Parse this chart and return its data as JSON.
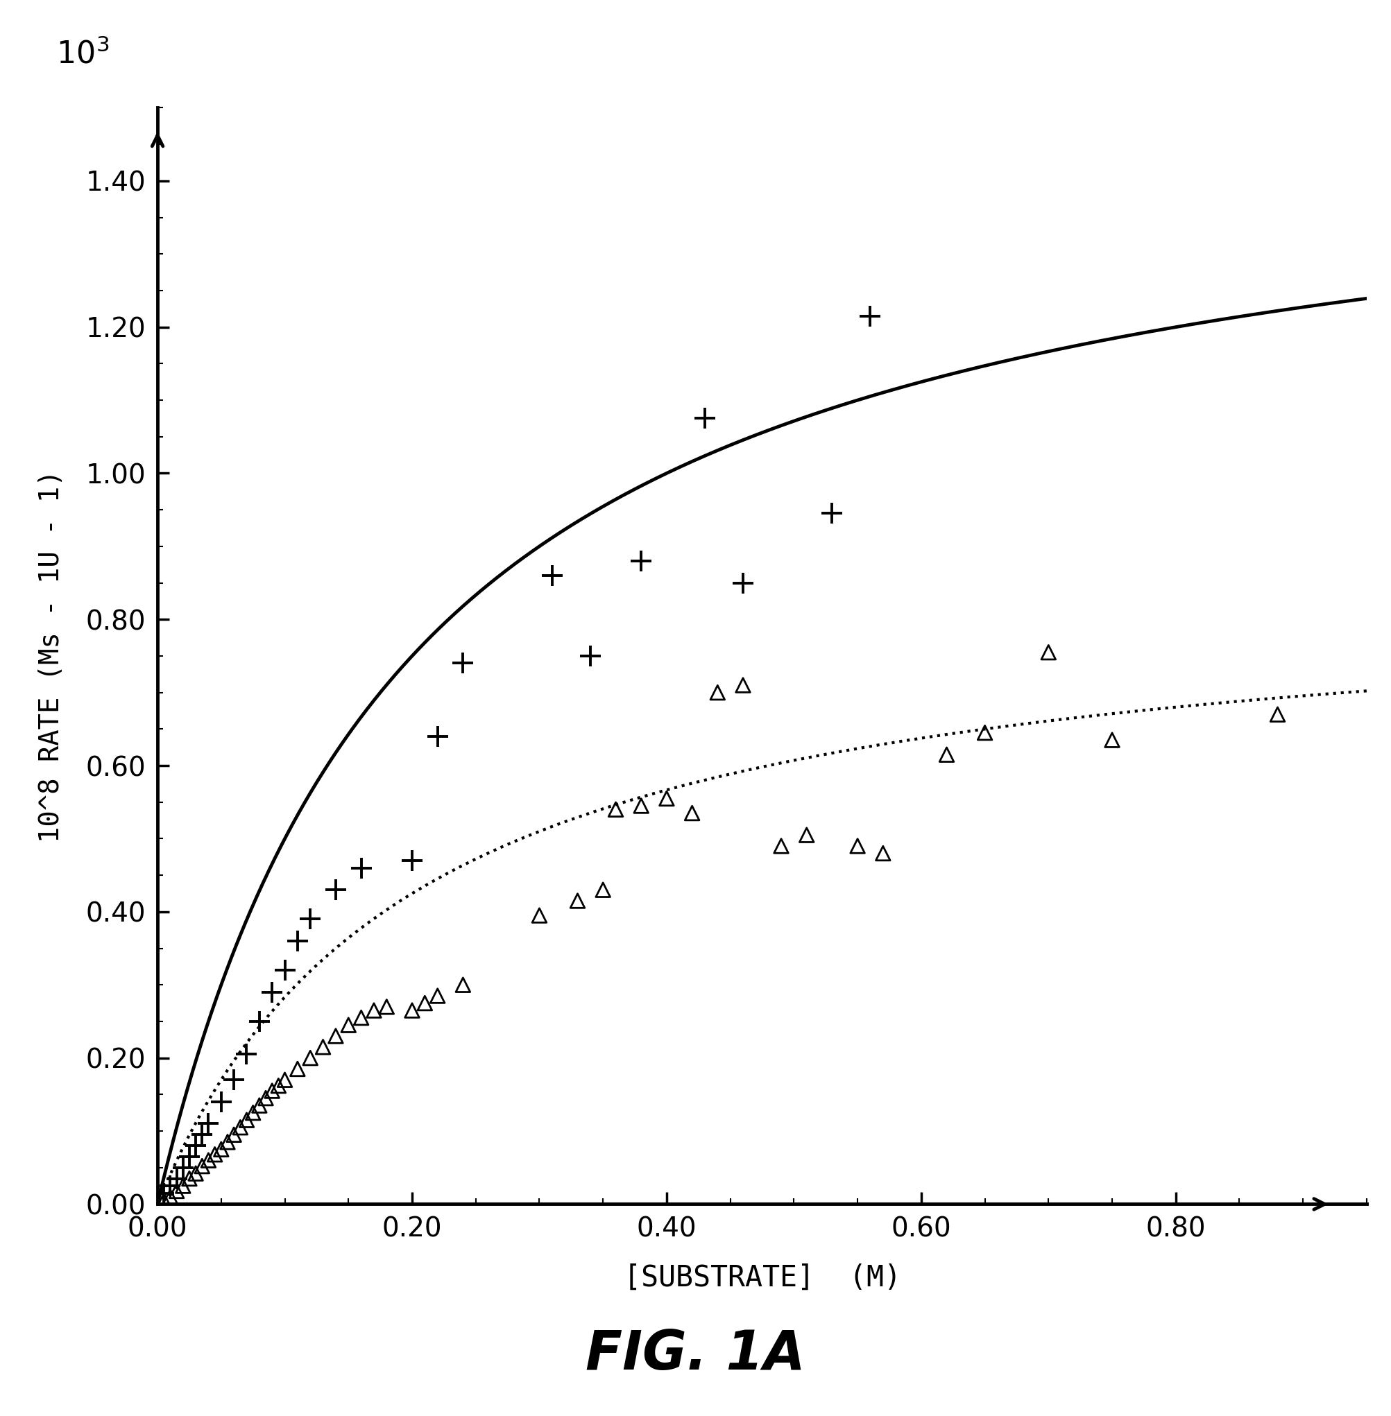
{
  "title": "FIG. 1A",
  "xlabel": "[SUBSTRATE]  (M)",
  "ylabel": "10^8 RATE (Ms - 1U - 1)",
  "xlim": [
    0.0,
    0.95
  ],
  "ylim": [
    0.0,
    1.5
  ],
  "xticks": [
    0.0,
    0.2,
    0.4,
    0.6,
    0.8
  ],
  "yticks": [
    0.0,
    0.2,
    0.4,
    0.6,
    0.8,
    1.0,
    1.2,
    1.4
  ],
  "background_color": "#ffffff",
  "line_color_solid": "#000000",
  "line_color_dotted": "#000000",
  "plus_marker_color": "#000000",
  "triangle_marker_color": "#000000",
  "plus_x": [
    0.005,
    0.01,
    0.015,
    0.02,
    0.025,
    0.03,
    0.035,
    0.04,
    0.05,
    0.06,
    0.07,
    0.08,
    0.09,
    0.1,
    0.11,
    0.12,
    0.14,
    0.16,
    0.2,
    0.22,
    0.24,
    0.31,
    0.34,
    0.38,
    0.43,
    0.46,
    0.53,
    0.56
  ],
  "plus_y": [
    0.015,
    0.025,
    0.035,
    0.05,
    0.065,
    0.08,
    0.095,
    0.11,
    0.14,
    0.17,
    0.205,
    0.25,
    0.29,
    0.32,
    0.36,
    0.39,
    0.43,
    0.46,
    0.47,
    0.64,
    0.74,
    0.86,
    0.75,
    0.88,
    1.075,
    0.85,
    0.945,
    1.215
  ],
  "triangle_x": [
    0.005,
    0.01,
    0.015,
    0.02,
    0.025,
    0.03,
    0.035,
    0.04,
    0.045,
    0.05,
    0.055,
    0.06,
    0.065,
    0.07,
    0.075,
    0.08,
    0.085,
    0.09,
    0.095,
    0.1,
    0.11,
    0.12,
    0.13,
    0.14,
    0.15,
    0.16,
    0.17,
    0.18,
    0.2,
    0.21,
    0.22,
    0.24,
    0.3,
    0.33,
    0.35,
    0.36,
    0.38,
    0.4,
    0.42,
    0.44,
    0.46,
    0.49,
    0.51,
    0.55,
    0.57,
    0.62,
    0.65,
    0.7,
    0.75,
    0.88
  ],
  "triangle_y": [
    0.005,
    0.01,
    0.018,
    0.025,
    0.035,
    0.042,
    0.052,
    0.06,
    0.068,
    0.075,
    0.085,
    0.095,
    0.105,
    0.115,
    0.125,
    0.135,
    0.145,
    0.155,
    0.162,
    0.17,
    0.185,
    0.2,
    0.215,
    0.23,
    0.245,
    0.255,
    0.265,
    0.27,
    0.265,
    0.275,
    0.285,
    0.3,
    0.395,
    0.415,
    0.43,
    0.54,
    0.545,
    0.555,
    0.535,
    0.7,
    0.71,
    0.49,
    0.505,
    0.49,
    0.48,
    0.615,
    0.645,
    0.755,
    0.635,
    0.67
  ],
  "solid_Vmax": 1.5,
  "solid_Km": 0.2,
  "dotted_Vmax": 0.85,
  "dotted_Km": 0.2
}
